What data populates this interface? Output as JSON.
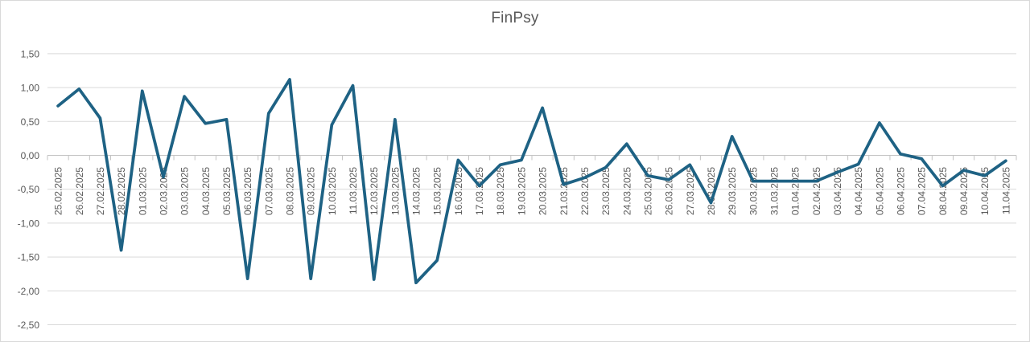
{
  "window": {
    "title": "FinPsy"
  },
  "colors": {
    "line": "#1E6284",
    "grid": "#D9D9D9",
    "axis": "#C3C3C3",
    "text": "#595959",
    "background": "#FFFFFF"
  },
  "chart_data": {
    "type": "line",
    "title": "FinPsy",
    "xlabel": "",
    "ylabel": "",
    "legend": "none",
    "grid": "horizontal",
    "x_label_rotation_deg": -90,
    "ylim": [
      -2.5,
      1.5
    ],
    "y_axis": {
      "tick_labels": [
        "1,50",
        "1,00",
        "0,50",
        "0,00",
        "-0,50",
        "-1,00",
        "-1,50",
        "-2,00",
        "-2,50"
      ],
      "tick_values": [
        1.5,
        1.0,
        0.5,
        0.0,
        -0.5,
        -1.0,
        -1.5,
        -2.0,
        -2.5
      ]
    },
    "categories": [
      "25.02.2025",
      "26.02.2025",
      "27.02.2025",
      "28.02.2025",
      "01.03.2025",
      "02.03.2025",
      "03.03.2025",
      "04.03.2025",
      "05.03.2025",
      "06.03.2025",
      "07.03.2025",
      "08.03.2025",
      "09.03.2025",
      "10.03.2025",
      "11.03.2025",
      "12.03.2025",
      "13.03.2025",
      "14.03.2025",
      "15.03.2025",
      "16.03.2025",
      "17.03.2025",
      "18.03.2025",
      "19.03.2025",
      "20.03.2025",
      "21.03.2025",
      "22.03.2025",
      "23.03.2025",
      "24.03.2025",
      "25.03.2025",
      "26.03.2025",
      "27.03.2025",
      "28.03.2025",
      "29.03.2025",
      "30.03.2025",
      "31.03.2025",
      "01.04.2025",
      "02.04.2025",
      "03.04.2025",
      "04.04.2025",
      "05.04.2025",
      "06.04.2025",
      "07.04.2025",
      "08.04.2025",
      "09.04.2025",
      "10.04.2025",
      "11.04.2025"
    ],
    "series": [
      {
        "name": "FinPsy",
        "color": "#1E6284",
        "values": [
          0.73,
          0.98,
          0.55,
          -1.4,
          0.95,
          -0.32,
          0.87,
          0.47,
          0.53,
          -1.82,
          0.62,
          1.12,
          -1.82,
          0.45,
          1.03,
          -1.83,
          0.53,
          -1.88,
          -1.55,
          -0.07,
          -0.45,
          -0.14,
          -0.07,
          0.7,
          -0.43,
          -0.33,
          -0.18,
          0.17,
          -0.3,
          -0.36,
          -0.14,
          -0.7,
          0.28,
          -0.38,
          -0.38,
          -0.38,
          -0.38,
          -0.25,
          -0.13,
          0.48,
          0.02,
          -0.05,
          -0.45,
          -0.22,
          -0.3,
          -0.08
        ]
      }
    ]
  }
}
